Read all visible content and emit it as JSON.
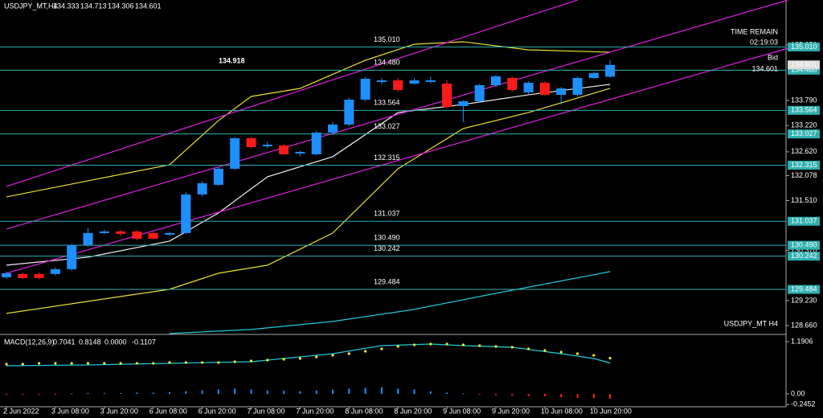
{
  "chart_data": [
    {
      "type": "candlestick",
      "symbol": "USDJPY_MT,H4",
      "ohlc_header": [
        134.333,
        134.713,
        134.306,
        134.601
      ],
      "watermark": "USDJPY_MT H4",
      "annotation": 134.918,
      "timer": {
        "label": "TIME REMAIN",
        "value": "02:19:03"
      },
      "bid": {
        "label": "Bid",
        "value": 134.601
      },
      "x_labels": [
        "2 Jun 2022",
        "3 Jun 08:00",
        "3 Jun 20:00",
        "6 Jun 08:00",
        "6 Jun 20:00",
        "7 Jun 08:00",
        "7 Jun 20:00",
        "8 Jun 08:00",
        "8 Jun 20:00",
        "9 Jun 08:00",
        "9 Jun 20:00",
        "10 Jun 08:00",
        "10 Jun 20:00"
      ],
      "candles": {
        "open": [
          129.761,
          129.835,
          129.835,
          129.835,
          129.944,
          130.494,
          130.769,
          130.805,
          130.805,
          130.769,
          130.732,
          130.769,
          131.648,
          131.868,
          132.234,
          132.93,
          132.747,
          132.765,
          132.582,
          132.564,
          133.058,
          133.242,
          133.809,
          134.212,
          134.249,
          134.175,
          134.212,
          134.175,
          133.662,
          133.772,
          134.139,
          134.303,
          133.974,
          134.194,
          133.919,
          133.919,
          134.303,
          134.333
        ],
        "high": [
          129.89,
          129.87,
          129.87,
          129.98,
          130.52,
          130.88,
          130.84,
          130.84,
          130.83,
          130.8,
          130.8,
          131.7,
          131.95,
          132.28,
          132.96,
          132.96,
          132.85,
          132.8,
          132.64,
          133.1,
          133.3,
          133.85,
          134.33,
          134.3,
          134.3,
          134.3,
          134.33,
          134.26,
          133.8,
          134.17,
          134.37,
          134.34,
          134.23,
          134.23,
          134.1,
          134.34,
          134.44,
          134.713
        ],
        "low": [
          129.72,
          129.72,
          129.72,
          129.8,
          129.9,
          130.45,
          130.74,
          130.7,
          130.6,
          130.62,
          130.7,
          130.74,
          131.6,
          131.84,
          132.2,
          132.7,
          132.7,
          132.55,
          132.52,
          132.54,
          133.0,
          133.2,
          133.78,
          134.15,
          133.99,
          134.15,
          134.18,
          133.6,
          133.3,
          133.74,
          134.1,
          133.99,
          133.94,
          133.9,
          133.7,
          133.88,
          134.28,
          134.306
        ],
        "close": [
          129.853,
          129.743,
          129.743,
          129.944,
          130.494,
          130.769,
          130.805,
          130.75,
          130.64,
          130.64,
          130.769,
          131.648,
          131.904,
          132.234,
          132.93,
          132.728,
          132.783,
          132.564,
          132.619,
          133.058,
          133.242,
          133.809,
          134.285,
          134.249,
          134.029,
          134.249,
          134.249,
          133.644,
          133.772,
          134.139,
          134.34,
          134.029,
          134.194,
          133.919,
          134.065,
          134.303,
          134.413,
          134.601
        ]
      },
      "colors": {
        "up": "#1e8fff",
        "down": "#ff1a1a"
      },
      "levels": {
        "color": "#2fb0b0",
        "values": [
          {
            "value": 135.01,
            "label": "135.010"
          },
          {
            "value": 134.48,
            "label": "134.480"
          },
          133.564,
          133.027,
          132.315,
          131.037,
          {
            "value": 130.49,
            "label": "130.490"
          },
          130.242,
          129.484
        ]
      },
      "lines": [
        {
          "color": "#e8e030",
          "x": [
            0,
            5,
            10,
            13,
            15,
            18,
            22,
            25,
            28,
            32,
            37
          ],
          "values": [
            131.593,
            131.959,
            132.325,
            133.333,
            133.882,
            134.065,
            134.706,
            135.073,
            135.128,
            134.944,
            134.89
          ]
        },
        {
          "color": "#e8e030",
          "x": [
            0,
            5,
            10,
            13,
            16,
            20,
            24,
            28,
            32,
            37
          ],
          "values": [
            128.937,
            129.212,
            129.487,
            129.853,
            130.036,
            130.769,
            132.234,
            133.15,
            133.516,
            134.065
          ]
        },
        {
          "color": "#f0f0f0",
          "x": [
            0,
            5,
            10,
            13,
            16,
            20,
            24,
            28,
            32,
            37
          ],
          "values": [
            130.036,
            130.219,
            130.585,
            131.227,
            132.051,
            132.509,
            133.516,
            133.699,
            133.919,
            134.157
          ]
        },
        {
          "color": "#22c8d8",
          "x": [
            10,
            15,
            20,
            25,
            30,
            37
          ],
          "values": [
            128.479,
            128.571,
            128.754,
            129.029,
            129.395,
            129.89
          ]
        },
        {
          "color": "#e020e0",
          "x": [
            0,
            35
          ],
          "values": [
            131.831,
            136.08
          ]
        },
        {
          "color": "#e020e0",
          "x": [
            0,
            47.9
          ],
          "values": [
            129.853,
            134.981
          ]
        },
        {
          "color": "#e020e0",
          "x": [
            0,
            47.9
          ],
          "values": [
            130.86,
            136.08
          ]
        }
      ],
      "ylim": [
        128.477,
        136.08
      ],
      "yticks": [
        {
          "value": 135.05,
          "label": "135.050"
        },
        {
          "value": 133.79,
          "label": "133.790"
        },
        {
          "value": 133.22,
          "label": "133.220"
        },
        {
          "value": 132.62,
          "label": "132.620"
        },
        132.078,
        {
          "value": 131.51,
          "label": "131.510"
        },
        {
          "value": 130.37,
          "label": "130.370"
        },
        {
          "value": 129.23,
          "label": "129.230"
        },
        {
          "value": 128.66,
          "label": "128.660"
        }
      ]
    },
    {
      "type": "macd",
      "title": "MACD(12,26,9)",
      "header": [
        0.7041,
        0.8148,
        {
          "value": 0,
          "label": "0.0000"
        },
        -0.1107
      ],
      "macd": {
        "color": "#22c8d8",
        "x": [
          0,
          5,
          10,
          15,
          20,
          23,
          26,
          28,
          31,
          34,
          36,
          37
        ],
        "values": [
          0.641,
          0.66,
          0.696,
          0.733,
          0.916,
          1.099,
          1.136,
          1.099,
          1.063,
          0.916,
          0.806,
          0.7041
        ]
      },
      "signal": {
        "color": "#f0f020",
        "values": [
          0.678,
          0.678,
          0.696,
          0.696,
          0.696,
          0.696,
          0.696,
          0.696,
          0.696,
          0.696,
          0.714,
          0.714,
          0.714,
          0.714,
          0.733,
          0.751,
          0.769,
          0.788,
          0.806,
          0.843,
          0.879,
          0.916,
          0.971,
          1.026,
          1.081,
          1.118,
          1.136,
          1.136,
          1.118,
          1.099,
          1.081,
          1.063,
          1.026,
          0.989,
          0.953,
          0.916,
          0.879,
          0.8148
        ]
      },
      "histogram": {
        "up": "#1e8fff",
        "down": "#ff1a1a",
        "values": [
          -0.02,
          -0.02,
          -0.02,
          -0.01,
          0.01,
          0.02,
          0.02,
          0.02,
          0.03,
          0.03,
          0.04,
          0.06,
          0.08,
          0.1,
          0.12,
          0.1,
          0.08,
          0.07,
          0.06,
          0.08,
          0.1,
          0.12,
          0.14,
          0.15,
          0.12,
          0.1,
          0.06,
          0.03,
          0.01,
          -0.02,
          -0.03,
          -0.04,
          -0.05,
          -0.06,
          -0.08,
          -0.09,
          -0.1,
          -0.1107
        ]
      },
      "ylim": [
        -0.275,
        1.319
      ],
      "yticks": [
        1.1906,
        {
          "value": 0,
          "label": "0.00"
        },
        -0.2452
      ]
    }
  ]
}
